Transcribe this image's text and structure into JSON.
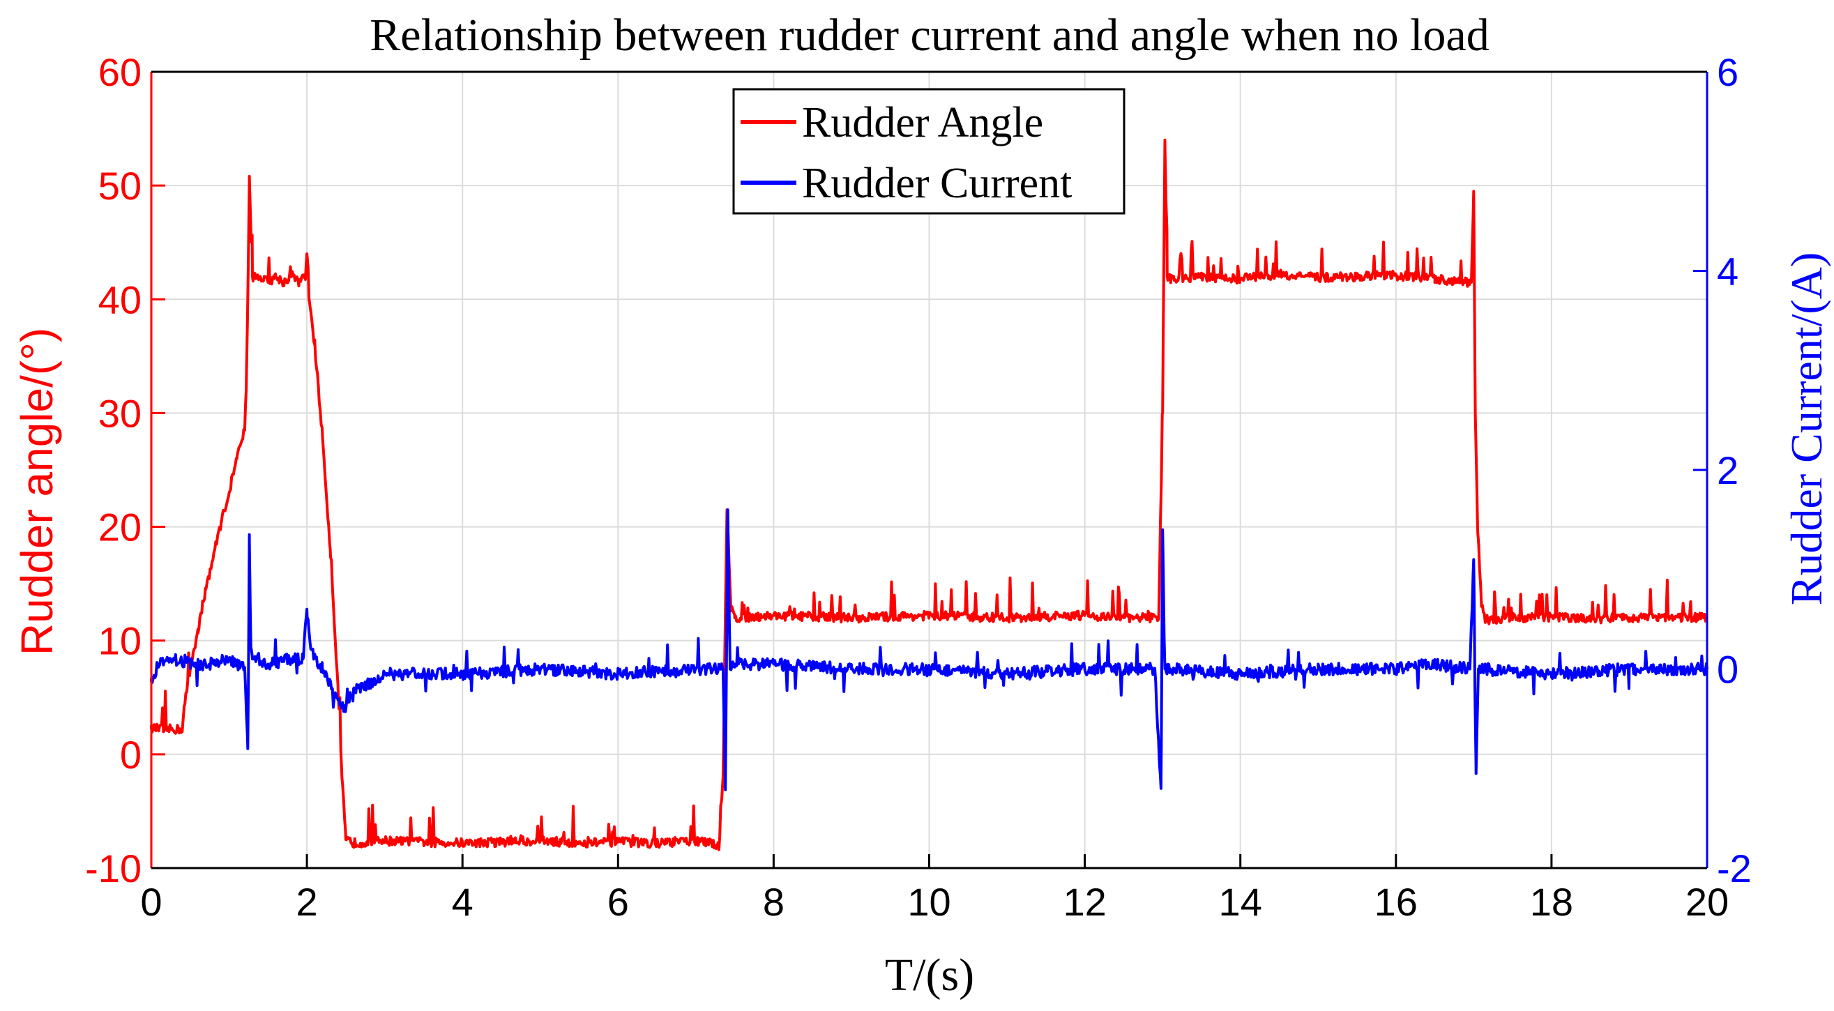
{
  "chart_data": {
    "type": "line",
    "title": "Relationship between rudder current and angle when no load",
    "xlabel": "T/(s)",
    "ylabel_left": "Rudder angle/(°)",
    "ylabel_right": "Rudder Current/(A)",
    "xlim": [
      0,
      20
    ],
    "ylim_left": [
      -10,
      60
    ],
    "ylim_right": [
      -2,
      6
    ],
    "x_ticks": [
      "0",
      "2",
      "4",
      "6",
      "8",
      "10",
      "12",
      "14",
      "16",
      "18",
      "20"
    ],
    "y_left_ticks": [
      "-10",
      "0",
      "10",
      "20",
      "30",
      "40",
      "50",
      "60"
    ],
    "y_right_ticks": [
      "-2",
      "0",
      "2",
      "4",
      "6"
    ],
    "grid": true,
    "legend_position": "top-center",
    "colors": {
      "angle": "#ff0000",
      "current": "#0000ff",
      "grid": "#dcdcdc",
      "axes": "#000000"
    },
    "series": [
      {
        "name": "Rudder Angle",
        "axis": "left",
        "x": [
          0,
          0.2,
          0.4,
          0.42,
          0.5,
          0.6,
          0.7,
          0.8,
          0.9,
          1.0,
          1.1,
          1.2,
          1.22,
          1.24,
          1.26,
          1.3,
          1.4,
          1.5,
          1.6,
          1.7,
          1.8,
          1.9,
          1.98,
          2.0,
          2.03,
          2.1,
          2.2,
          2.3,
          2.35,
          2.4,
          2.45,
          2.5,
          2.6,
          3.0,
          3.5,
          4.0,
          4.5,
          5.0,
          5.5,
          6.0,
          6.5,
          7.0,
          7.3,
          7.35,
          7.4,
          7.45,
          7.5,
          8.0,
          9.0,
          10.0,
          11.0,
          12.0,
          12.5,
          12.95,
          13.0,
          13.03,
          13.06,
          13.1,
          13.5,
          14.0,
          14.5,
          15.0,
          15.5,
          16.0,
          16.5,
          16.97,
          17.0,
          17.02,
          17.05,
          17.1,
          17.15,
          17.5,
          18.0,
          18.5,
          19.0,
          19.5,
          20.0
        ],
        "values": [
          2.3,
          2.2,
          2.2,
          4.0,
          7.5,
          11.0,
          14.5,
          17.5,
          20.5,
          23.0,
          26.0,
          28.5,
          32.0,
          40.0,
          50.5,
          42.0,
          42.0,
          41.5,
          42.0,
          41.5,
          42.0,
          41.5,
          42.0,
          44.0,
          40.0,
          36.0,
          28.0,
          18.0,
          12.0,
          6.0,
          -2.0,
          -7.5,
          -7.8,
          -7.6,
          -7.7,
          -7.8,
          -7.7,
          -7.6,
          -7.8,
          -7.7,
          -7.8,
          -7.6,
          -8.0,
          -2.0,
          21.5,
          13.0,
          12.0,
          12.2,
          12.0,
          12.2,
          12.0,
          12.2,
          12.0,
          12.0,
          30.0,
          54.0,
          42.0,
          41.8,
          42.0,
          41.8,
          42.2,
          41.9,
          42.0,
          42.1,
          41.8,
          41.5,
          49.5,
          30.0,
          20.0,
          13.0,
          11.8,
          12.0,
          12.1,
          11.9,
          12.0,
          12.1,
          12.0
        ]
      },
      {
        "name": "Rudder Current",
        "axis": "right",
        "x": [
          0,
          0.1,
          0.3,
          0.5,
          0.8,
          1.0,
          1.2,
          1.24,
          1.26,
          1.28,
          1.3,
          1.5,
          1.8,
          1.95,
          2.0,
          2.05,
          2.2,
          2.4,
          2.5,
          2.6,
          2.8,
          3.0,
          4.0,
          5.0,
          6.0,
          7.0,
          7.35,
          7.38,
          7.41,
          7.44,
          7.5,
          8.0,
          9.0,
          10.0,
          11.0,
          12.0,
          12.9,
          12.98,
          13.0,
          13.03,
          13.1,
          14.0,
          15.0,
          16.0,
          16.5,
          16.95,
          17.0,
          17.03,
          17.06,
          17.1,
          18.0,
          19.0,
          20.0
        ],
        "values": [
          -0.1,
          0.05,
          0.1,
          0.05,
          0.05,
          0.1,
          0.0,
          -0.8,
          1.35,
          0.2,
          0.1,
          0.05,
          0.1,
          0.1,
          0.6,
          0.2,
          0.0,
          -0.3,
          -0.4,
          -0.2,
          -0.15,
          -0.05,
          -0.05,
          0.0,
          -0.05,
          0.0,
          0.0,
          -1.2,
          1.6,
          0.0,
          0.05,
          0.05,
          0.0,
          0.0,
          -0.05,
          0.0,
          0.0,
          -1.2,
          1.4,
          0.0,
          0.0,
          -0.05,
          0.0,
          0.0,
          0.05,
          0.0,
          1.1,
          -1.05,
          0.0,
          0.0,
          -0.05,
          0.0,
          0.0
        ]
      }
    ]
  }
}
